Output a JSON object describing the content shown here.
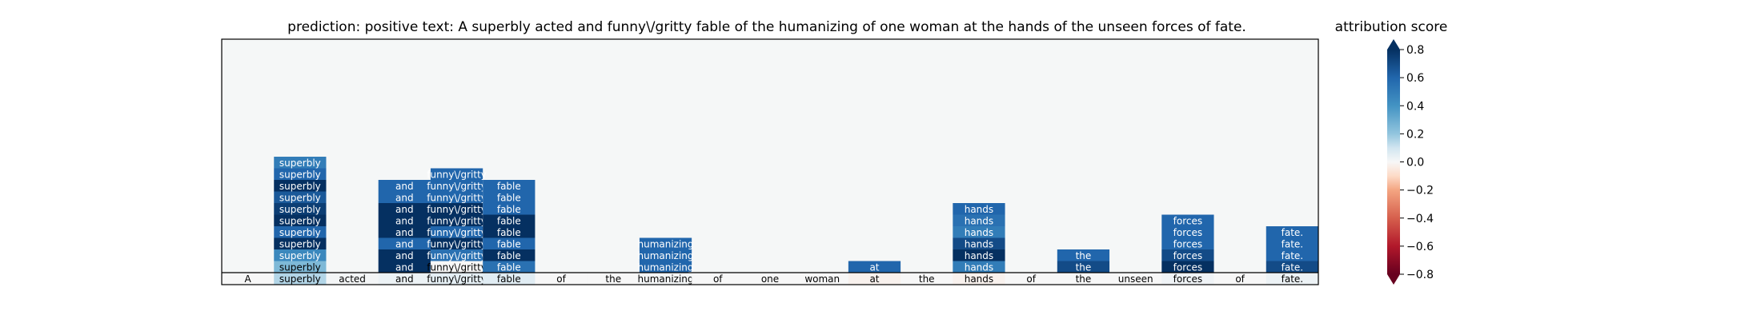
{
  "chart_data": {
    "type": "heatmap",
    "title": "prediction:  positive     text:  A superbly acted and funny\\/gritty fable of the humanizing of one woman at the hands of the unseen forces of fate.",
    "tokens": [
      "A",
      "superbly",
      "acted",
      "and",
      "funny\\/gritty",
      "fable",
      "of",
      "the",
      "humanizing",
      "of",
      "one",
      "woman",
      "at",
      "the",
      "hands",
      "of",
      "the",
      "unseen",
      "forces",
      "of",
      "fate."
    ],
    "base_values": [
      0.0,
      0.15,
      0.01,
      0.03,
      0.05,
      0.06,
      0.0,
      0.0,
      0.01,
      0.0,
      0.0,
      0.0,
      -0.02,
      0.0,
      -0.02,
      0.0,
      0.0,
      0.0,
      0.02,
      0.0,
      0.03
    ],
    "stacks": [
      {
        "token_index": 1,
        "values": [
          0.25,
          0.45,
          0.85,
          0.6,
          0.85,
          0.75,
          0.65,
          0.85,
          0.6,
          0.5
        ]
      },
      {
        "token_index": 3,
        "values": [
          0.8,
          0.8,
          0.6,
          0.8,
          0.9,
          0.8,
          0.6,
          0.6
        ]
      },
      {
        "token_index": 4,
        "values": [
          0.0,
          0.55,
          0.8,
          0.6,
          0.9,
          0.8,
          0.6,
          0.6,
          0.6
        ]
      },
      {
        "token_index": 5,
        "values": [
          0.55,
          0.8,
          0.6,
          0.9,
          0.8,
          0.6,
          0.6,
          0.6
        ]
      },
      {
        "token_index": 8,
        "values": [
          0.6,
          0.6,
          0.6
        ]
      },
      {
        "token_index": 12,
        "values": [
          0.6
        ]
      },
      {
        "token_index": 14,
        "values": [
          0.5,
          0.85,
          0.7,
          0.5,
          0.55,
          0.6
        ]
      },
      {
        "token_index": 16,
        "values": [
          0.7,
          0.6
        ]
      },
      {
        "token_index": 18,
        "values": [
          0.85,
          0.7,
          0.6,
          0.6,
          0.6
        ]
      },
      {
        "token_index": 20,
        "values": [
          0.7,
          0.6,
          0.6,
          0.6
        ]
      }
    ],
    "colorbar": {
      "label": "attribution score",
      "range": [
        -0.8,
        0.8
      ],
      "ticks": [
        0.8,
        0.6,
        0.4,
        0.2,
        0.0,
        -0.2,
        -0.4,
        -0.6,
        -0.8
      ],
      "tick_labels": [
        "0.8",
        "0.6",
        "0.4",
        "0.2",
        "0.0",
        "−0.2",
        "−0.4",
        "−0.6",
        "−0.8"
      ],
      "colormap": "RdBu"
    }
  }
}
